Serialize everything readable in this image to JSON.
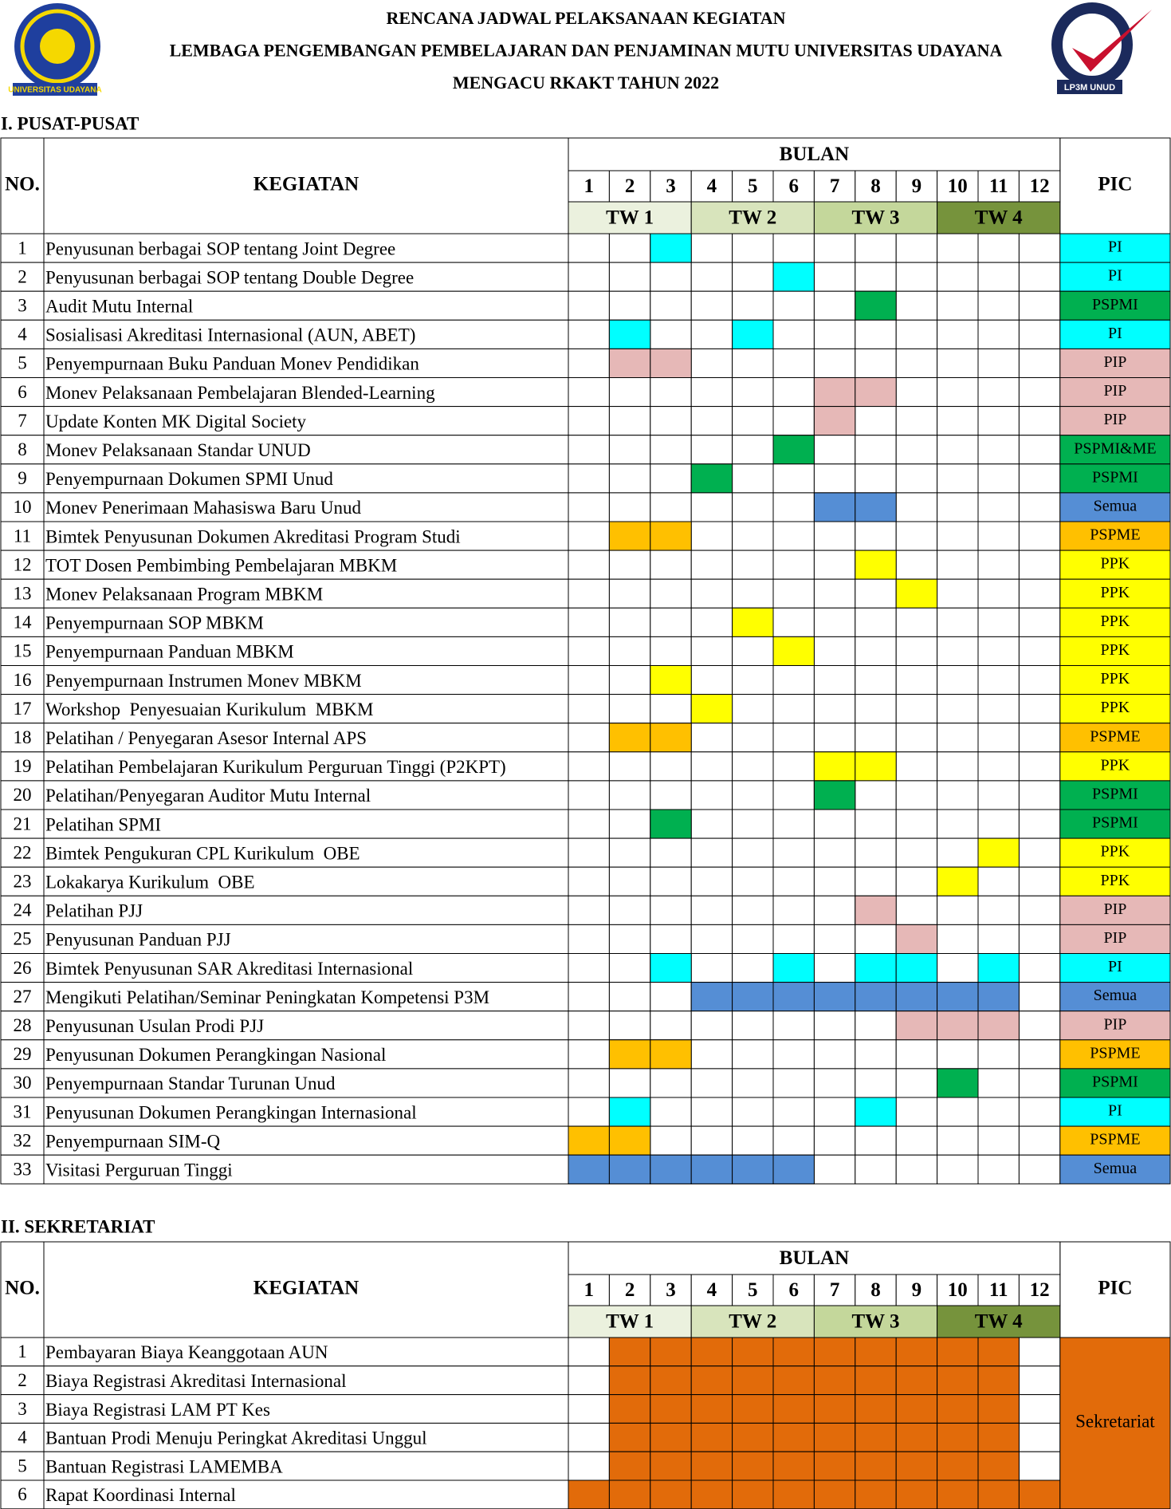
{
  "header": {
    "lines": [
      "RENCANA JADWAL PELAKSANAAN KEGIATAN",
      "LEMBAGA PENGEMBANGAN PEMBELAJARAN DAN PENJAMINAN MUTU UNIVERSITAS UDAYANA",
      "MENGACU RKAKT TAHUN 2022"
    ],
    "logo_left": "UNIVERSITAS UDAYANA",
    "logo_right": "LP3M UNUD"
  },
  "columns": {
    "no": "NO.",
    "activity": "KEGIATAN",
    "month_group": "BULAN",
    "months": [
      "1",
      "2",
      "3",
      "4",
      "5",
      "6",
      "7",
      "8",
      "9",
      "10",
      "11",
      "12"
    ],
    "quarters": [
      "TW 1",
      "TW 2",
      "TW 3",
      "TW 4"
    ],
    "pic": "PIC"
  },
  "quarter_colors": [
    "#ebf1de",
    "#d8e4bc",
    "#c4d79b",
    "#76933c"
  ],
  "pic_colors": {
    "PI": "#00ffff",
    "PSPMI": "#00b050",
    "PSPMI&ME": "#00b050",
    "PIP": "#e6b8b7",
    "Semua": "#558ed5",
    "PSPME": "#ffc000",
    "PPK": "#ffff00"
  },
  "sections": [
    {
      "title": "I. PUSAT-PUSAT",
      "rows": [
        {
          "no": "1",
          "activity": "Penyusunan berbagai SOP tentang Joint Degree",
          "months": [
            3
          ],
          "pic": "PI"
        },
        {
          "no": "2",
          "activity": "Penyusunan berbagai SOP tentang Double Degree",
          "months": [
            6
          ],
          "pic": "PI"
        },
        {
          "no": "3",
          "activity": "Audit Mutu Internal",
          "months": [
            8
          ],
          "pic": "PSPMI"
        },
        {
          "no": "4",
          "activity": "Sosialisasi Akreditasi Internasional (AUN, ABET)",
          "months": [
            2,
            5
          ],
          "pic": "PI"
        },
        {
          "no": "5",
          "activity": "Penyempurnaan Buku Panduan Monev Pendidikan",
          "months": [
            2,
            3
          ],
          "pic": "PIP"
        },
        {
          "no": "6",
          "activity": "Monev Pelaksanaan Pembelajaran Blended-Learning",
          "months": [
            7,
            8
          ],
          "pic": "PIP"
        },
        {
          "no": "7",
          "activity": "Update Konten MK Digital Society",
          "months": [
            7
          ],
          "pic": "PIP"
        },
        {
          "no": "8",
          "activity": "Monev Pelaksanaan Standar UNUD",
          "months": [
            6
          ],
          "pic": "PSPMI&ME"
        },
        {
          "no": "9",
          "activity": "Penyempurnaan Dokumen SPMI Unud",
          "months": [
            4
          ],
          "pic": "PSPMI"
        },
        {
          "no": "10",
          "activity": "Monev Penerimaan Mahasiswa Baru Unud",
          "months": [
            7,
            8
          ],
          "pic": "Semua"
        },
        {
          "no": "11",
          "activity": "Bimtek Penyusunan Dokumen Akreditasi Program Studi",
          "months": [
            2,
            3
          ],
          "pic": "PSPME"
        },
        {
          "no": "12",
          "activity": "TOT Dosen Pembimbing Pembelajaran MBKM",
          "months": [
            8
          ],
          "pic": "PPK"
        },
        {
          "no": "13",
          "activity": "Monev Pelaksanaan Program MBKM",
          "months": [
            9
          ],
          "pic": "PPK"
        },
        {
          "no": "14",
          "activity": "Penyempurnaan SOP MBKM",
          "months": [
            5
          ],
          "pic": "PPK"
        },
        {
          "no": "15",
          "activity": "Penyempurnaan Panduan MBKM",
          "months": [
            6
          ],
          "pic": "PPK"
        },
        {
          "no": "16",
          "activity": "Penyempurnaan Instrumen Monev MBKM",
          "months": [
            3
          ],
          "pic": "PPK"
        },
        {
          "no": "17",
          "activity": "Workshop  Penyesuaian Kurikulum  MBKM",
          "months": [
            4
          ],
          "pic": "PPK"
        },
        {
          "no": "18",
          "activity": "Pelatihan / Penyegaran Asesor Internal APS",
          "months": [
            2,
            3
          ],
          "pic": "PSPME"
        },
        {
          "no": "19",
          "activity": "Pelatihan Pembelajaran Kurikulum Perguruan Tinggi (P2KPT)",
          "months": [
            7,
            8
          ],
          "pic": "PPK"
        },
        {
          "no": "20",
          "activity": "Pelatihan/Penyegaran Auditor Mutu Internal",
          "months": [
            7
          ],
          "pic": "PSPMI"
        },
        {
          "no": "21",
          "activity": "Pelatihan SPMI",
          "months": [
            3
          ],
          "pic": "PSPMI"
        },
        {
          "no": "22",
          "activity": "Bimtek Pengukuran CPL Kurikulum  OBE",
          "months": [
            11
          ],
          "pic": "PPK"
        },
        {
          "no": "23",
          "activity": "Lokakarya Kurikulum  OBE",
          "months": [
            10
          ],
          "pic": "PPK"
        },
        {
          "no": "24",
          "activity": "Pelatihan PJJ",
          "months": [
            8
          ],
          "pic": "PIP"
        },
        {
          "no": "25",
          "activity": "Penyusunan Panduan PJJ",
          "months": [
            9
          ],
          "pic": "PIP"
        },
        {
          "no": "26",
          "activity": "Bimtek Penyusunan SAR Akreditasi Internasional",
          "months": [
            3,
            6,
            8,
            9,
            11
          ],
          "pic": "PI"
        },
        {
          "no": "27",
          "activity": "Mengikuti Pelatihan/Seminar Peningkatan Kompetensi P3M",
          "months": [
            4,
            5,
            6,
            7,
            8,
            9,
            10,
            11
          ],
          "pic": "Semua"
        },
        {
          "no": "28",
          "activity": "Penyusunan Usulan Prodi PJJ",
          "months": [
            9,
            10,
            11
          ],
          "pic": "PIP"
        },
        {
          "no": "29",
          "activity": "Penyusunan Dokumen Perangkingan Nasional",
          "months": [
            2,
            3
          ],
          "pic": "PSPME"
        },
        {
          "no": "30",
          "activity": "Penyempurnaan Standar Turunan Unud",
          "months": [
            10
          ],
          "pic": "PSPMI"
        },
        {
          "no": "31",
          "activity": "Penyusunan Dokumen Perangkingan Internasional",
          "months": [
            2,
            8
          ],
          "pic": "PI"
        },
        {
          "no": "32",
          "activity": "Penyempurnaan SIM-Q",
          "months": [
            1,
            2
          ],
          "pic": "PSPME"
        },
        {
          "no": "33",
          "activity": "Visitasi Perguruan Tinggi",
          "months": [
            1,
            2,
            3,
            4,
            5,
            6
          ],
          "pic": "Semua"
        }
      ]
    },
    {
      "title": "II. SEKRETARIAT",
      "pic": "Sekretariat",
      "color": "#e26b0a",
      "rows": [
        {
          "no": "1",
          "activity": "Pembayaran Biaya Keanggotaan AUN",
          "months": [
            2,
            3,
            4,
            5,
            6,
            7,
            8,
            9,
            10,
            11
          ]
        },
        {
          "no": "2",
          "activity": "Biaya Registrasi Akreditasi Internasional",
          "months": [
            2,
            3,
            4,
            5,
            6,
            7,
            8,
            9,
            10,
            11
          ]
        },
        {
          "no": "3",
          "activity": "Biaya Registrasi LAM PT Kes",
          "months": [
            2,
            3,
            4,
            5,
            6,
            7,
            8,
            9,
            10,
            11
          ]
        },
        {
          "no": "4",
          "activity": "Bantuan Prodi Menuju Peringkat Akreditasi Unggul",
          "months": [
            2,
            3,
            4,
            5,
            6,
            7,
            8,
            9,
            10,
            11
          ]
        },
        {
          "no": "5",
          "activity": "Bantuan Registrasi LAMEMBA",
          "months": [
            2,
            3,
            4,
            5,
            6,
            7,
            8,
            9,
            10,
            11
          ]
        },
        {
          "no": "6",
          "activity": "Rapat Koordinasi Internal",
          "months": [
            1,
            2,
            3,
            4,
            5,
            6,
            7,
            8,
            9,
            10,
            11,
            12
          ]
        }
      ]
    }
  ]
}
